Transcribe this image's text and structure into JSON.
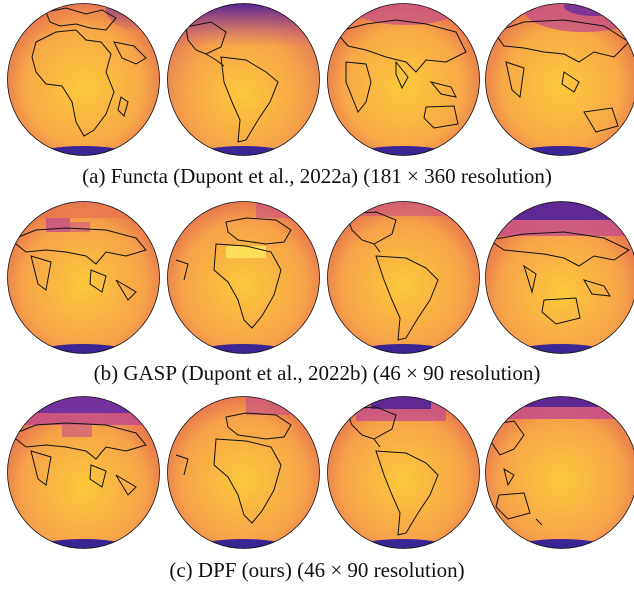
{
  "captions": {
    "a": "(a) Functa (Dupont et al., 2022a) (181 × 360 resolution)",
    "b": "(b) GASP (Dupont et al., 2022b) (46 × 90 resolution)",
    "c": "(c) DPF (ours) (46 × 90 resolution)"
  },
  "colors": {
    "warm": "#fcc93a",
    "mid": "#f6a24a",
    "orange": "#e8784f",
    "magenta": "#c44e8a",
    "purple": "#6a2c9e",
    "deep": "#2c1c8c",
    "coast": "#111111"
  },
  "globes": [
    {
      "row": "a",
      "view": "africa-europe",
      "cold_cap": "north-east"
    },
    {
      "row": "a",
      "view": "americas",
      "cold_cap": "north"
    },
    {
      "row": "a",
      "view": "asia-africa",
      "cold_cap": "north"
    },
    {
      "row": "a",
      "view": "asia-australia",
      "cold_cap": "north"
    },
    {
      "row": "b",
      "view": "asia-india",
      "cold_cap": "north"
    },
    {
      "row": "b",
      "view": "africa-atlantic",
      "cold_cap": "north"
    },
    {
      "row": "b",
      "view": "americas",
      "cold_cap": "north"
    },
    {
      "row": "b",
      "view": "asia-australia",
      "cold_cap": "north"
    },
    {
      "row": "c",
      "view": "asia-india",
      "cold_cap": "north"
    },
    {
      "row": "c",
      "view": "africa-atlantic",
      "cold_cap": "north"
    },
    {
      "row": "c",
      "view": "americas",
      "cold_cap": "north"
    },
    {
      "row": "c",
      "view": "pacific-australia",
      "cold_cap": "north"
    }
  ]
}
